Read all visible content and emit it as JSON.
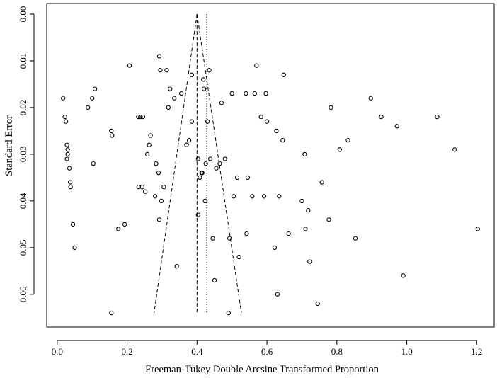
{
  "chart_data": {
    "type": "scatter",
    "title": "",
    "xlabel": "Freeman-Tukey Double Arcsine Transformed Proportion",
    "ylabel": "Standard Error",
    "xlim": [
      -0.03,
      1.25
    ],
    "ylim": [
      0.0,
      0.067
    ],
    "y_reversed": true,
    "x_ticks": [
      "0.0",
      "0.2",
      "0.4",
      "0.6",
      "0.8",
      "1.0",
      "1.2"
    ],
    "y_ticks": [
      "0.00",
      "0.01",
      "0.02",
      "0.03",
      "0.04",
      "0.05",
      "0.06"
    ],
    "grid": false,
    "legend": "none",
    "pooled_estimate": 0.4,
    "null_line": 0.428,
    "funnel": {
      "apex_se": 0.0,
      "base_se": 0.064,
      "left": 0.277,
      "right": 0.527
    },
    "points": [
      {
        "x": 0.017,
        "y": 0.018
      },
      {
        "x": 0.022,
        "y": 0.022
      },
      {
        "x": 0.025,
        "y": 0.023
      },
      {
        "x": 0.028,
        "y": 0.028
      },
      {
        "x": 0.03,
        "y": 0.029
      },
      {
        "x": 0.03,
        "y": 0.03
      },
      {
        "x": 0.028,
        "y": 0.031
      },
      {
        "x": 0.035,
        "y": 0.033
      },
      {
        "x": 0.037,
        "y": 0.036
      },
      {
        "x": 0.038,
        "y": 0.037
      },
      {
        "x": 0.045,
        "y": 0.045
      },
      {
        "x": 0.05,
        "y": 0.05
      },
      {
        "x": 0.088,
        "y": 0.02
      },
      {
        "x": 0.1,
        "y": 0.018
      },
      {
        "x": 0.108,
        "y": 0.016
      },
      {
        "x": 0.103,
        "y": 0.032
      },
      {
        "x": 0.155,
        "y": 0.025
      },
      {
        "x": 0.157,
        "y": 0.026
      },
      {
        "x": 0.155,
        "y": 0.064
      },
      {
        "x": 0.175,
        "y": 0.046
      },
      {
        "x": 0.193,
        "y": 0.045
      },
      {
        "x": 0.207,
        "y": 0.011
      },
      {
        "x": 0.232,
        "y": 0.022
      },
      {
        "x": 0.238,
        "y": 0.022
      },
      {
        "x": 0.233,
        "y": 0.037
      },
      {
        "x": 0.245,
        "y": 0.022
      },
      {
        "x": 0.243,
        "y": 0.037
      },
      {
        "x": 0.252,
        "y": 0.038
      },
      {
        "x": 0.258,
        "y": 0.03
      },
      {
        "x": 0.263,
        "y": 0.028
      },
      {
        "x": 0.267,
        "y": 0.026
      },
      {
        "x": 0.28,
        "y": 0.039
      },
      {
        "x": 0.283,
        "y": 0.032
      },
      {
        "x": 0.29,
        "y": 0.034
      },
      {
        "x": 0.292,
        "y": 0.044
      },
      {
        "x": 0.292,
        "y": 0.009
      },
      {
        "x": 0.295,
        "y": 0.012
      },
      {
        "x": 0.298,
        "y": 0.04
      },
      {
        "x": 0.305,
        "y": 0.037
      },
      {
        "x": 0.313,
        "y": 0.012
      },
      {
        "x": 0.318,
        "y": 0.02
      },
      {
        "x": 0.323,
        "y": 0.016
      },
      {
        "x": 0.335,
        "y": 0.018
      },
      {
        "x": 0.342,
        "y": 0.054
      },
      {
        "x": 0.355,
        "y": 0.017
      },
      {
        "x": 0.37,
        "y": 0.028
      },
      {
        "x": 0.377,
        "y": 0.027
      },
      {
        "x": 0.385,
        "y": 0.013
      },
      {
        "x": 0.385,
        "y": 0.023
      },
      {
        "x": 0.403,
        "y": 0.031
      },
      {
        "x": 0.403,
        "y": 0.043
      },
      {
        "x": 0.408,
        "y": 0.035
      },
      {
        "x": 0.413,
        "y": 0.034
      },
      {
        "x": 0.415,
        "y": 0.034
      },
      {
        "x": 0.418,
        "y": 0.014
      },
      {
        "x": 0.42,
        "y": 0.016
      },
      {
        "x": 0.423,
        "y": 0.04
      },
      {
        "x": 0.425,
        "y": 0.032
      },
      {
        "x": 0.43,
        "y": 0.023
      },
      {
        "x": 0.435,
        "y": 0.012
      },
      {
        "x": 0.438,
        "y": 0.031
      },
      {
        "x": 0.445,
        "y": 0.048
      },
      {
        "x": 0.45,
        "y": 0.057
      },
      {
        "x": 0.455,
        "y": 0.033
      },
      {
        "x": 0.465,
        "y": 0.032
      },
      {
        "x": 0.47,
        "y": 0.019
      },
      {
        "x": 0.48,
        "y": 0.031
      },
      {
        "x": 0.49,
        "y": 0.064
      },
      {
        "x": 0.493,
        "y": 0.048
      },
      {
        "x": 0.5,
        "y": 0.017
      },
      {
        "x": 0.505,
        "y": 0.039
      },
      {
        "x": 0.515,
        "y": 0.035
      },
      {
        "x": 0.52,
        "y": 0.052
      },
      {
        "x": 0.54,
        "y": 0.017
      },
      {
        "x": 0.542,
        "y": 0.047
      },
      {
        "x": 0.545,
        "y": 0.035
      },
      {
        "x": 0.558,
        "y": 0.039
      },
      {
        "x": 0.565,
        "y": 0.017
      },
      {
        "x": 0.57,
        "y": 0.011
      },
      {
        "x": 0.583,
        "y": 0.022
      },
      {
        "x": 0.592,
        "y": 0.039
      },
      {
        "x": 0.597,
        "y": 0.017
      },
      {
        "x": 0.6,
        "y": 0.023
      },
      {
        "x": 0.622,
        "y": 0.05
      },
      {
        "x": 0.627,
        "y": 0.025
      },
      {
        "x": 0.63,
        "y": 0.06
      },
      {
        "x": 0.635,
        "y": 0.039
      },
      {
        "x": 0.645,
        "y": 0.027
      },
      {
        "x": 0.648,
        "y": 0.013
      },
      {
        "x": 0.662,
        "y": 0.047
      },
      {
        "x": 0.7,
        "y": 0.04
      },
      {
        "x": 0.708,
        "y": 0.03
      },
      {
        "x": 0.71,
        "y": 0.046
      },
      {
        "x": 0.718,
        "y": 0.042
      },
      {
        "x": 0.722,
        "y": 0.053
      },
      {
        "x": 0.745,
        "y": 0.062
      },
      {
        "x": 0.757,
        "y": 0.036
      },
      {
        "x": 0.777,
        "y": 0.044
      },
      {
        "x": 0.783,
        "y": 0.02
      },
      {
        "x": 0.808,
        "y": 0.029
      },
      {
        "x": 0.832,
        "y": 0.027
      },
      {
        "x": 0.853,
        "y": 0.048
      },
      {
        "x": 0.897,
        "y": 0.018
      },
      {
        "x": 0.927,
        "y": 0.022
      },
      {
        "x": 0.972,
        "y": 0.024
      },
      {
        "x": 0.99,
        "y": 0.056
      },
      {
        "x": 1.087,
        "y": 0.022
      },
      {
        "x": 1.137,
        "y": 0.029
      },
      {
        "x": 1.203,
        "y": 0.046
      }
    ]
  }
}
